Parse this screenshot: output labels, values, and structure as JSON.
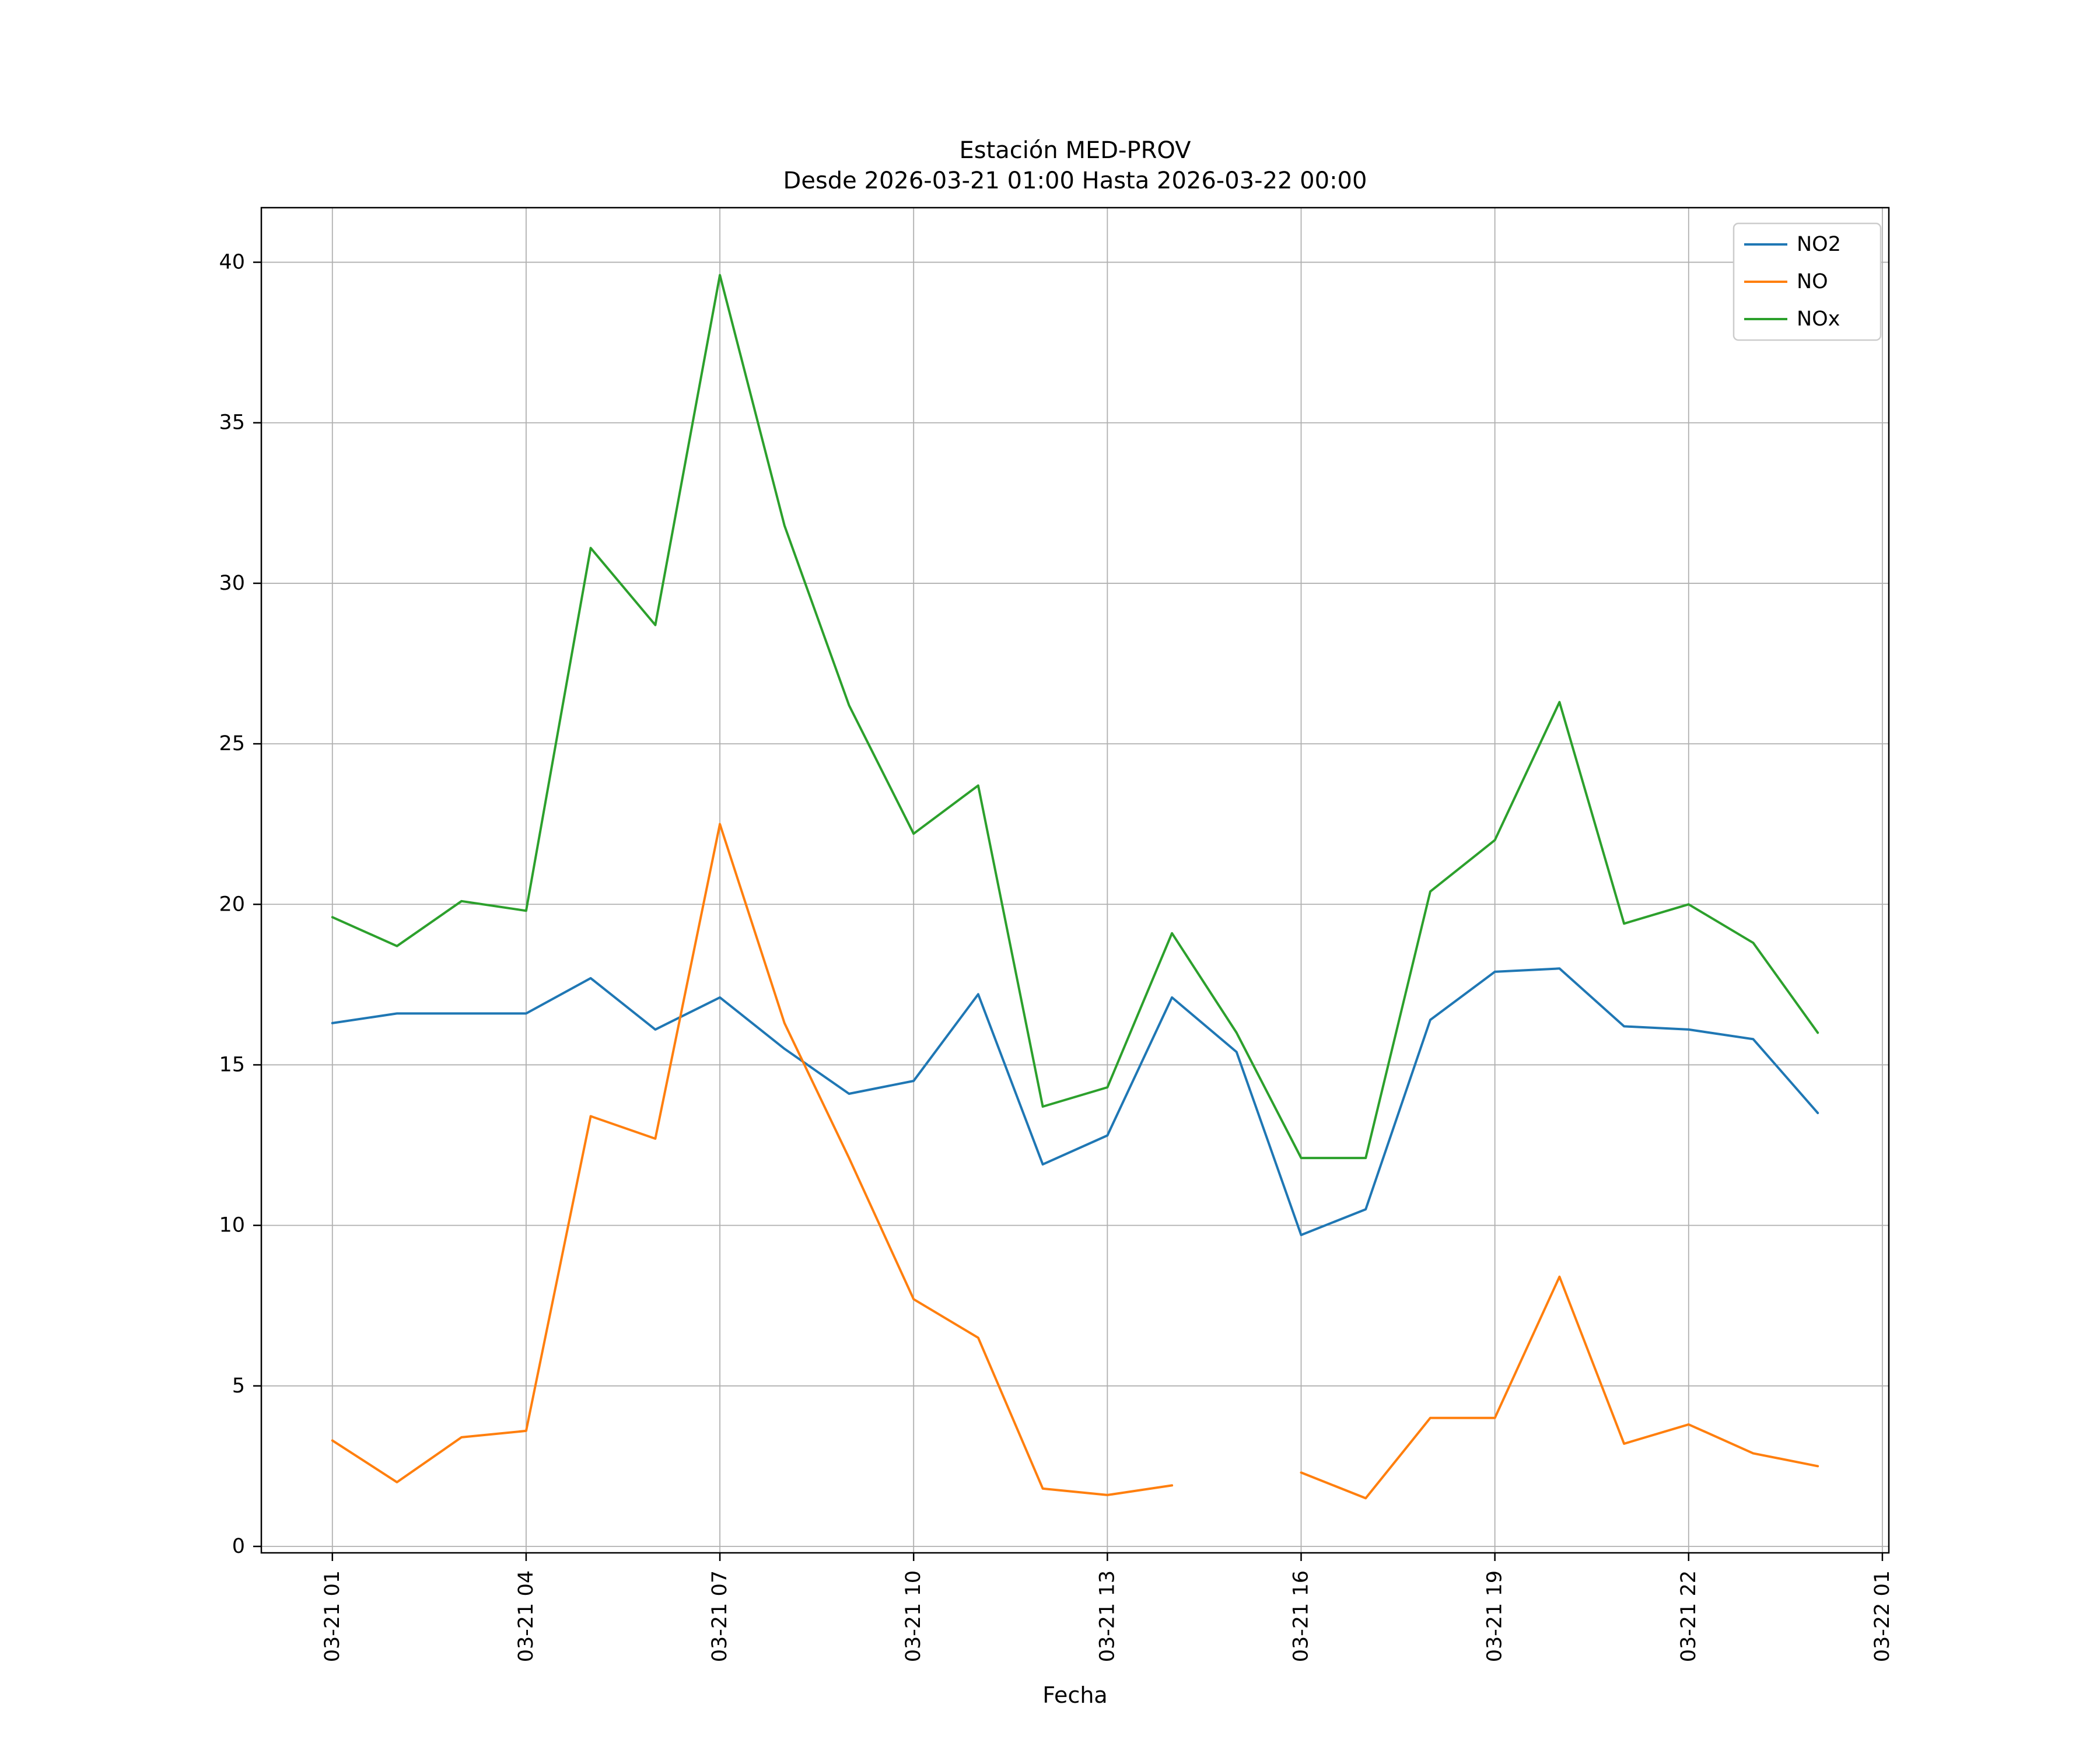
{
  "chart_data": {
    "type": "line",
    "title": "Estación MED-PROV",
    "subtitle": "Desde 2026-03-21 01:00 Hasta 2026-03-22 00:00",
    "xlabel": "Fecha",
    "ylabel": "",
    "grid": true,
    "legend_position": "upper right",
    "x_range": [
      -0.1,
      25.1
    ],
    "y_range": [
      -0.2,
      41.7
    ],
    "y_ticks": [
      0,
      5,
      10,
      15,
      20,
      25,
      30,
      35,
      40
    ],
    "x_tick_positions": [
      1,
      4,
      7,
      10,
      13,
      16,
      19,
      22,
      25
    ],
    "x_tick_labels": [
      "03-21 01",
      "03-21 04",
      "03-21 07",
      "03-21 10",
      "03-21 13",
      "03-21 16",
      "03-21 19",
      "03-21 22",
      "03-22 01"
    ],
    "x": [
      "03-21 01:00",
      "03-21 02:00",
      "03-21 03:00",
      "03-21 04:00",
      "03-21 05:00",
      "03-21 06:00",
      "03-21 07:00",
      "03-21 08:00",
      "03-21 09:00",
      "03-21 10:00",
      "03-21 11:00",
      "03-21 12:00",
      "03-21 13:00",
      "03-21 14:00",
      "03-21 15:00",
      "03-21 16:00",
      "03-21 17:00",
      "03-21 18:00",
      "03-21 19:00",
      "03-21 20:00",
      "03-21 21:00",
      "03-21 22:00",
      "03-21 23:00",
      "03-22 00:00"
    ],
    "series": [
      {
        "name": "NO2",
        "color": "#1f77b4",
        "values": [
          16.3,
          16.6,
          16.6,
          16.6,
          17.7,
          16.1,
          17.1,
          15.5,
          14.1,
          14.5,
          17.2,
          11.9,
          12.8,
          17.1,
          15.4,
          9.7,
          10.5,
          16.4,
          17.9,
          18.0,
          16.2,
          16.1,
          15.8,
          13.5
        ]
      },
      {
        "name": "NO",
        "color": "#ff7f0e",
        "values": [
          3.3,
          2.0,
          3.4,
          3.6,
          13.4,
          12.7,
          22.5,
          16.3,
          12.1,
          7.7,
          6.5,
          1.8,
          1.6,
          1.9,
          null,
          2.3,
          1.5,
          4.0,
          4.0,
          8.4,
          3.2,
          3.8,
          2.9,
          2.5
        ]
      },
      {
        "name": "NOx",
        "color": "#2ca02c",
        "values": [
          19.6,
          18.7,
          20.1,
          19.8,
          31.1,
          28.7,
          39.6,
          31.8,
          26.2,
          22.2,
          23.7,
          13.7,
          14.3,
          19.1,
          16.0,
          12.1,
          12.1,
          20.4,
          22.0,
          26.3,
          19.4,
          20.0,
          18.8,
          16.0
        ]
      }
    ]
  }
}
